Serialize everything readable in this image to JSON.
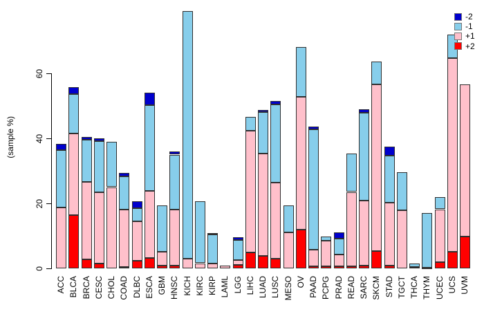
{
  "chart_data": {
    "type": "bar",
    "stacked": true,
    "title": "",
    "xlabel": "",
    "ylabel": "(sample %)",
    "ylim": [
      0,
      80
    ],
    "yticks": [
      0,
      20,
      40,
      60
    ],
    "grid": false,
    "legend_position": "top-right",
    "bar_border_color": "#2f2f2f",
    "categories": [
      "ACC",
      "BLCA",
      "BRCA",
      "CESC",
      "CHOL",
      "COAD",
      "DLBC",
      "ESCA",
      "GBM",
      "HNSC",
      "KICH",
      "KIRC",
      "KIRP",
      "LAML",
      "LGG",
      "LIHC",
      "LUAD",
      "LUSC",
      "MESO",
      "OV",
      "PAAD",
      "PCPG",
      "PRAD",
      "READ",
      "SARC",
      "SKCM",
      "STAD",
      "TGCT",
      "THCA",
      "THYM",
      "UCEC",
      "UCS",
      "UVM"
    ],
    "stack_order_bottom_to_top": [
      "+2",
      "+1",
      "-1",
      "-2"
    ],
    "series": [
      {
        "name": "+2",
        "color": "#ff0000",
        "values": [
          0,
          16.3,
          2.8,
          1.5,
          0,
          0.4,
          2.3,
          3.1,
          0.9,
          0.9,
          0,
          0,
          0,
          0,
          1.1,
          4.8,
          3.8,
          2.9,
          0,
          12.0,
          0.7,
          0.6,
          0.7,
          0.6,
          0.9,
          5.4,
          0.8,
          0,
          0,
          0,
          1.9,
          5.2,
          9.8
        ]
      },
      {
        "name": "+1",
        "color": "#ffc0cb",
        "values": [
          18.8,
          25.2,
          23.8,
          22.0,
          25.0,
          17.8,
          12.2,
          20.8,
          4.3,
          17.3,
          2.9,
          1.6,
          1.4,
          0.8,
          1.5,
          37.6,
          31.6,
          23.5,
          11.0,
          40.7,
          5.1,
          7.9,
          3.5,
          22.9,
          20.0,
          51.2,
          19.5,
          17.9,
          0.5,
          0.2,
          16.3,
          59.4,
          46.8
        ]
      },
      {
        "name": "-1",
        "color": "#87ceeb",
        "values": [
          17.6,
          12.2,
          13.0,
          15.7,
          13.9,
          10.1,
          4.1,
          26.3,
          14.1,
          16.8,
          76.3,
          19.1,
          9.0,
          0,
          6.2,
          4.3,
          12.6,
          24.0,
          8.3,
          15.3,
          36.9,
          1.3,
          4.9,
          11.9,
          27.0,
          7.1,
          14.3,
          11.7,
          1.0,
          16.9,
          3.7,
          7.3,
          0
        ]
      },
      {
        "name": "-2",
        "color": "#0000cd",
        "values": [
          1.9,
          2.1,
          0.9,
          0.9,
          0,
          1.0,
          2.1,
          3.8,
          0,
          1.0,
          0,
          0,
          0.5,
          0,
          0.7,
          0,
          0.7,
          1.1,
          0,
          0,
          0.9,
          0,
          1.9,
          0,
          1.0,
          0,
          2.8,
          0,
          0,
          0,
          0,
          0,
          0
        ]
      }
    ]
  },
  "y_axis": {
    "label": "(sample %)",
    "tick_labels": [
      "0",
      "20",
      "40",
      "60"
    ]
  },
  "legend": {
    "entries": [
      {
        "label": "-2",
        "color": "#0000cd"
      },
      {
        "label": "-1",
        "color": "#87ceeb"
      },
      {
        "label": "+1",
        "color": "#ffc0cb"
      },
      {
        "label": "+2",
        "color": "#ff0000"
      }
    ]
  }
}
